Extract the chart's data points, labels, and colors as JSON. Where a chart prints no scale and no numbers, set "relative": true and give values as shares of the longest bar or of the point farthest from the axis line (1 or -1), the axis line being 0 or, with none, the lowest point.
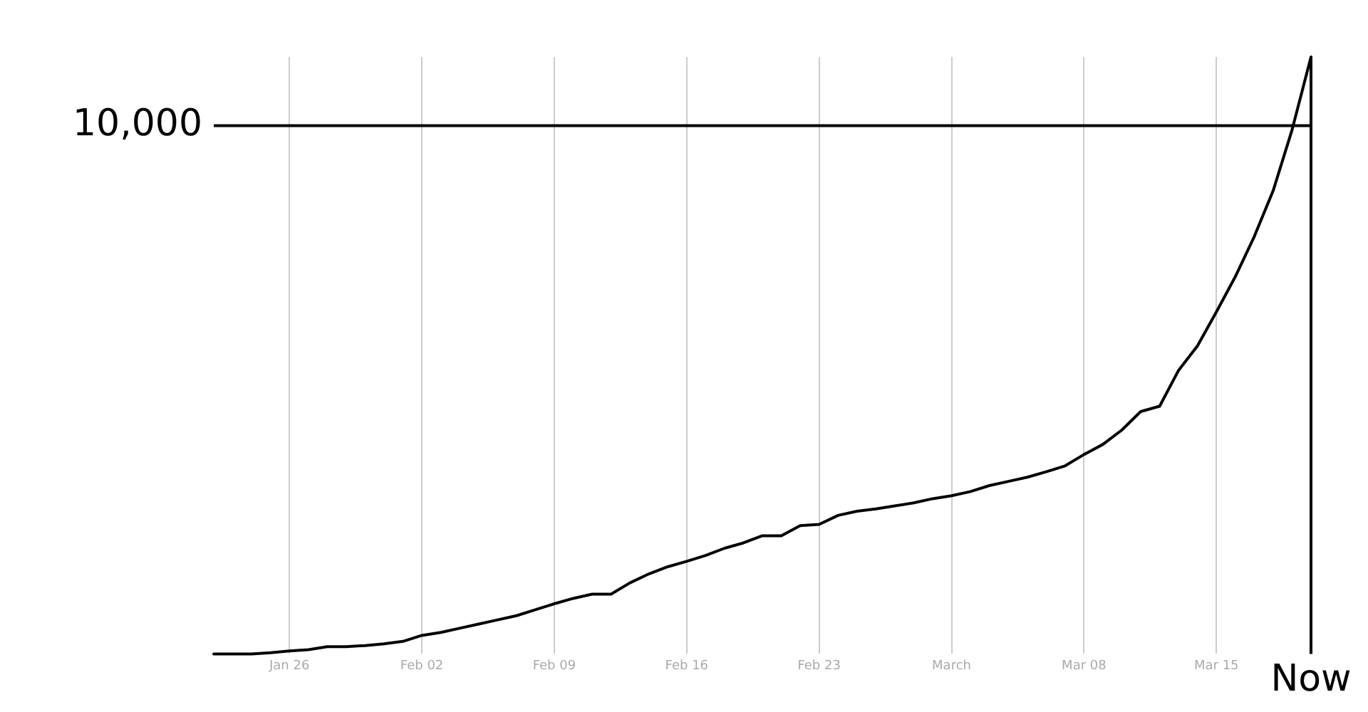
{
  "chart_data": {
    "type": "line",
    "relative": true,
    "x": [
      "--01-22",
      "--01-23",
      "--01-24",
      "--01-25",
      "--01-26",
      "--01-27",
      "--01-28",
      "--01-29",
      "--01-30",
      "--01-31",
      "--02-01",
      "--02-02",
      "--02-03",
      "--02-04",
      "--02-05",
      "--02-06",
      "--02-07",
      "--02-08",
      "--02-09",
      "--02-10",
      "--02-11",
      "--02-12",
      "--02-13",
      "--02-14",
      "--02-15",
      "--02-16",
      "--02-17",
      "--02-18",
      "--02-19",
      "--02-20",
      "--02-21",
      "--02-22",
      "--02-23",
      "--02-24",
      "--02-25",
      "--02-26",
      "--02-27",
      "--02-28",
      "--02-29",
      "--03-01",
      "--03-02",
      "--03-03",
      "--03-04",
      "--03-05",
      "--03-06",
      "--03-07",
      "--03-08",
      "--03-09",
      "--03-10",
      "--03-11",
      "--03-12",
      "--03-13",
      "--03-14",
      "--03-15",
      "--03-16",
      "--03-17",
      "--03-18",
      "--03-19",
      "--03-20"
    ],
    "series": [
      {
        "color": "#000000",
        "values": [
          0,
          0,
          0,
          0.002,
          0.005,
          0.007,
          0.012,
          0.012,
          0.014,
          0.017,
          0.021,
          0.031,
          0.036,
          0.043,
          0.05,
          0.057,
          0.064,
          0.074,
          0.084,
          0.093,
          0.1,
          0.1,
          0.119,
          0.134,
          0.146,
          0.155,
          0.165,
          0.177,
          0.186,
          0.198,
          0.198,
          0.215,
          0.217,
          0.232,
          0.239,
          0.243,
          0.248,
          0.253,
          0.26,
          0.265,
          0.272,
          0.282,
          0.289,
          0.296,
          0.305,
          0.315,
          0.334,
          0.351,
          0.375,
          0.406,
          0.415,
          0.475,
          0.516,
          0.573,
          0.632,
          0.699,
          0.776,
          0.878,
          1
        ]
      }
    ],
    "xlim": [
      "--01-22",
      "--03-20"
    ],
    "xticks": [
      {
        "value": "--01-26",
        "label": "Jan 26"
      },
      {
        "value": "--02-02",
        "label": "Feb 02"
      },
      {
        "value": "--02-09",
        "label": "Feb 09"
      },
      {
        "value": "--02-16",
        "label": "Feb 16"
      },
      {
        "value": "--02-23",
        "label": "Feb 23"
      },
      {
        "value": "--03-01",
        "label": "March"
      },
      {
        "value": "--03-08",
        "label": "Mar 08"
      },
      {
        "value": "--03-15",
        "label": "Mar 15"
      }
    ],
    "grid": "x",
    "legend": false,
    "marker": "none",
    "line_style": "solid",
    "annotations": [
      "10,000"
    ],
    "ref_lines": [
      {
        "axis": "y",
        "value": 0.885,
        "color": "#000000"
      },
      {
        "axis": "x",
        "value": "--03-20",
        "label": "Now",
        "color": "#000000"
      }
    ]
  }
}
